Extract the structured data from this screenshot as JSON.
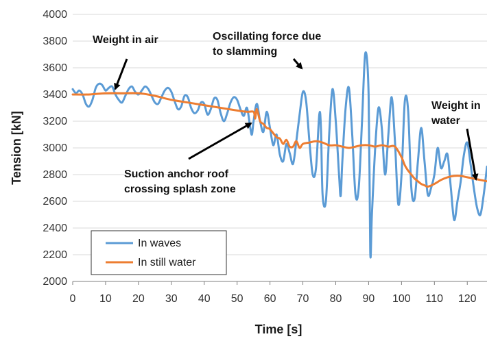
{
  "chart_data": {
    "type": "line",
    "xlabel": "Time [s]",
    "ylabel": "Tension [kN]",
    "xlim": [
      0,
      126
    ],
    "ylim": [
      2000,
      4000
    ],
    "x_ticks": [
      0,
      10,
      20,
      30,
      40,
      50,
      60,
      70,
      80,
      90,
      100,
      110,
      120
    ],
    "y_ticks": [
      2000,
      2200,
      2400,
      2600,
      2800,
      3000,
      3200,
      3400,
      3600,
      3800,
      4000
    ],
    "grid": "horizontal",
    "legend_position": "bottom-left",
    "series": [
      {
        "name": "In waves",
        "color": "#5b9bd5",
        "points": [
          [
            0,
            3440
          ],
          [
            1,
            3410
          ],
          [
            2,
            3430
          ],
          [
            3,
            3400
          ],
          [
            4,
            3330
          ],
          [
            5,
            3310
          ],
          [
            6,
            3360
          ],
          [
            7,
            3450
          ],
          [
            8,
            3480
          ],
          [
            9,
            3470
          ],
          [
            10,
            3430
          ],
          [
            11,
            3450
          ],
          [
            12,
            3460
          ],
          [
            13,
            3400
          ],
          [
            14,
            3360
          ],
          [
            15,
            3340
          ],
          [
            16,
            3390
          ],
          [
            17,
            3440
          ],
          [
            18,
            3460
          ],
          [
            19,
            3420
          ],
          [
            20,
            3400
          ],
          [
            21,
            3430
          ],
          [
            22,
            3460
          ],
          [
            23,
            3440
          ],
          [
            24,
            3390
          ],
          [
            25,
            3340
          ],
          [
            26,
            3330
          ],
          [
            27,
            3380
          ],
          [
            28,
            3430
          ],
          [
            29,
            3450
          ],
          [
            30,
            3420
          ],
          [
            31,
            3350
          ],
          [
            32,
            3290
          ],
          [
            33,
            3310
          ],
          [
            34,
            3390
          ],
          [
            35,
            3380
          ],
          [
            36,
            3300
          ],
          [
            37,
            3260
          ],
          [
            38,
            3280
          ],
          [
            39,
            3340
          ],
          [
            40,
            3330
          ],
          [
            41,
            3250
          ],
          [
            42,
            3290
          ],
          [
            43,
            3370
          ],
          [
            44,
            3360
          ],
          [
            45,
            3260
          ],
          [
            46,
            3200
          ],
          [
            47,
            3260
          ],
          [
            48,
            3340
          ],
          [
            49,
            3380
          ],
          [
            50,
            3360
          ],
          [
            51,
            3290
          ],
          [
            52,
            3240
          ],
          [
            53,
            3300
          ],
          [
            54,
            3150
          ],
          [
            54.5,
            3100
          ],
          [
            55,
            3200
          ],
          [
            56,
            3330
          ],
          [
            57,
            3200
          ],
          [
            58,
            3120
          ],
          [
            59,
            3270
          ],
          [
            60,
            3150
          ],
          [
            61,
            3020
          ],
          [
            62,
            3100
          ],
          [
            63,
            2950
          ],
          [
            64,
            2900
          ],
          [
            65,
            3030
          ],
          [
            66,
            2960
          ],
          [
            67,
            2880
          ],
          [
            68,
            3050
          ],
          [
            69,
            3250
          ],
          [
            70,
            3420
          ],
          [
            71,
            3350
          ],
          [
            72,
            3050
          ],
          [
            73,
            2800
          ],
          [
            74,
            2850
          ],
          [
            75,
            3250
          ],
          [
            75.5,
            3150
          ],
          [
            76,
            2650
          ],
          [
            77,
            2600
          ],
          [
            78,
            3100
          ],
          [
            79,
            3440
          ],
          [
            80,
            3200
          ],
          [
            81,
            2800
          ],
          [
            81.5,
            2640
          ],
          [
            82,
            2900
          ],
          [
            83,
            3300
          ],
          [
            84,
            3450
          ],
          [
            85,
            3100
          ],
          [
            86,
            2650
          ],
          [
            87,
            2700
          ],
          [
            88,
            3200
          ],
          [
            89,
            3710
          ],
          [
            90,
            3400
          ],
          [
            90.5,
            2220
          ],
          [
            91,
            2500
          ],
          [
            92,
            3000
          ],
          [
            93,
            3300
          ],
          [
            94,
            3150
          ],
          [
            95,
            2800
          ],
          [
            96,
            3100
          ],
          [
            97,
            3380
          ],
          [
            98,
            3050
          ],
          [
            99,
            2580
          ],
          [
            100,
            2800
          ],
          [
            101,
            3350
          ],
          [
            102,
            3280
          ],
          [
            103,
            2700
          ],
          [
            104,
            2620
          ],
          [
            105,
            2900
          ],
          [
            106,
            3150
          ],
          [
            107,
            2900
          ],
          [
            108,
            2650
          ],
          [
            109,
            2700
          ],
          [
            110,
            2800
          ],
          [
            111,
            3000
          ],
          [
            112,
            2850
          ],
          [
            113,
            2900
          ],
          [
            114,
            2950
          ],
          [
            115,
            2700
          ],
          [
            116,
            2460
          ],
          [
            117,
            2600
          ],
          [
            118,
            2750
          ],
          [
            119,
            2950
          ],
          [
            120,
            3040
          ],
          [
            121,
            2880
          ],
          [
            122,
            2700
          ],
          [
            123,
            2550
          ],
          [
            124,
            2500
          ],
          [
            125,
            2650
          ],
          [
            126,
            2860
          ]
        ]
      },
      {
        "name": "In still water",
        "color": "#ed7d31",
        "points": [
          [
            0,
            3400
          ],
          [
            5,
            3400
          ],
          [
            10,
            3410
          ],
          [
            15,
            3410
          ],
          [
            20,
            3410
          ],
          [
            25,
            3390
          ],
          [
            30,
            3360
          ],
          [
            35,
            3340
          ],
          [
            40,
            3320
          ],
          [
            45,
            3300
          ],
          [
            50,
            3280
          ],
          [
            53,
            3270
          ],
          [
            55,
            3270
          ],
          [
            55.5,
            3220
          ],
          [
            56,
            3290
          ],
          [
            57,
            3200
          ],
          [
            58,
            3180
          ],
          [
            59,
            3150
          ],
          [
            60,
            3140
          ],
          [
            62,
            3080
          ],
          [
            63,
            3070
          ],
          [
            64,
            3030
          ],
          [
            65,
            3060
          ],
          [
            66,
            3010
          ],
          [
            67,
            3010
          ],
          [
            68,
            3050
          ],
          [
            69,
            3000
          ],
          [
            70,
            3030
          ],
          [
            72,
            3040
          ],
          [
            74,
            3050
          ],
          [
            76,
            3040
          ],
          [
            78,
            3020
          ],
          [
            80,
            3020
          ],
          [
            82,
            3010
          ],
          [
            84,
            3000
          ],
          [
            86,
            3010
          ],
          [
            88,
            3020
          ],
          [
            90,
            3020
          ],
          [
            92,
            3010
          ],
          [
            94,
            3020
          ],
          [
            96,
            3010
          ],
          [
            98,
            3010
          ],
          [
            100,
            2930
          ],
          [
            101,
            2870
          ],
          [
            102,
            2830
          ],
          [
            103,
            2800
          ],
          [
            104,
            2770
          ],
          [
            105,
            2750
          ],
          [
            106,
            2730
          ],
          [
            107,
            2720
          ],
          [
            108,
            2710
          ],
          [
            110,
            2730
          ],
          [
            112,
            2760
          ],
          [
            114,
            2780
          ],
          [
            116,
            2790
          ],
          [
            118,
            2790
          ],
          [
            120,
            2780
          ],
          [
            122,
            2770
          ],
          [
            124,
            2760
          ],
          [
            126,
            2750
          ]
        ]
      }
    ],
    "annotations": [
      {
        "lines": [
          "Weight in air"
        ]
      },
      {
        "lines": [
          "Oscillating force due",
          "to slamming"
        ]
      },
      {
        "lines": [
          "Weight in",
          "water"
        ]
      },
      {
        "lines": [
          "Suction anchor roof",
          "crossing splash zone"
        ]
      }
    ]
  }
}
